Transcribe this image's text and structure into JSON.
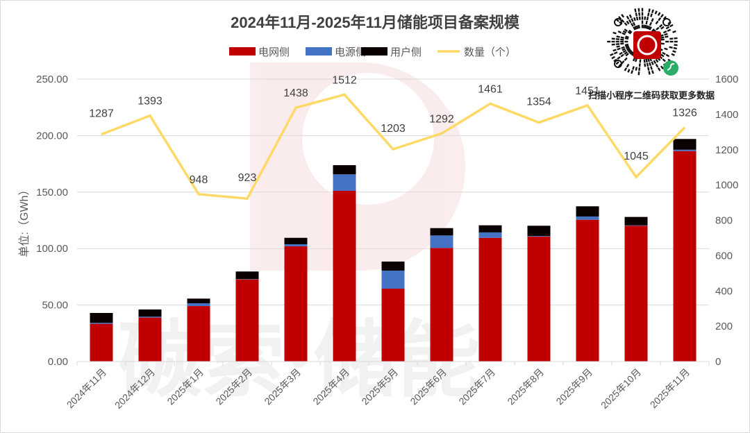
{
  "chart_data": {
    "type": "bar",
    "title": "2024年11月-2025年11月储能项目备案规模",
    "categories": [
      "2024年11月",
      "2024年12月",
      "2025年1月",
      "2025年2月",
      "2025年3月",
      "2025年4月",
      "2025年5月",
      "2025年6月",
      "2025年7月",
      "2025年8月",
      "2025年9月",
      "2025年10月",
      "2025年11月"
    ],
    "series": [
      {
        "name": "电网侧",
        "kind": "bar",
        "axis": "left",
        "color": "#c00000",
        "values": [
          33.4,
          38.9,
          49.1,
          72.7,
          102.0,
          151.1,
          64.5,
          100.5,
          109.5,
          110.6,
          125.5,
          120.2,
          186.3
        ]
      },
      {
        "name": "电源侧",
        "kind": "bar",
        "axis": "left",
        "color": "#4472c4",
        "values": [
          0.8,
          0.8,
          2.5,
          0.3,
          1.8,
          14.6,
          16.0,
          11.1,
          4.8,
          0.5,
          2.9,
          0.3,
          1.2
        ]
      },
      {
        "name": "用户侧",
        "kind": "bar",
        "axis": "left",
        "color": "#0a0000",
        "values": [
          8.8,
          6.4,
          4.1,
          6.7,
          5.7,
          8.1,
          8.0,
          6.5,
          6.3,
          9.1,
          9.0,
          7.5,
          9.5
        ]
      },
      {
        "name": "数量（个）",
        "kind": "line",
        "axis": "right",
        "color": "#ffd966",
        "values": [
          1287,
          1393,
          948,
          923,
          1438,
          1512,
          1203,
          1292,
          1461,
          1354,
          1451,
          1045,
          1326
        ]
      }
    ],
    "ylabel": "单位:（GWh）",
    "ylim": [
      0,
      250
    ],
    "yticks": [
      "0.00",
      "50.00",
      "100.00",
      "150.00",
      "200.00",
      "250.00"
    ],
    "y2lim": [
      0,
      1600
    ],
    "y2ticks": [
      "0",
      "200",
      "400",
      "600",
      "800",
      "1000",
      "1200",
      "1400",
      "1600"
    ],
    "grid": true,
    "legend_position": "top-center",
    "stacked": true
  },
  "qr": {
    "caption": "扫描小程序二维码获取更多数据"
  },
  "watermark": {
    "text": "碳索·储能",
    "logo": "C"
  }
}
